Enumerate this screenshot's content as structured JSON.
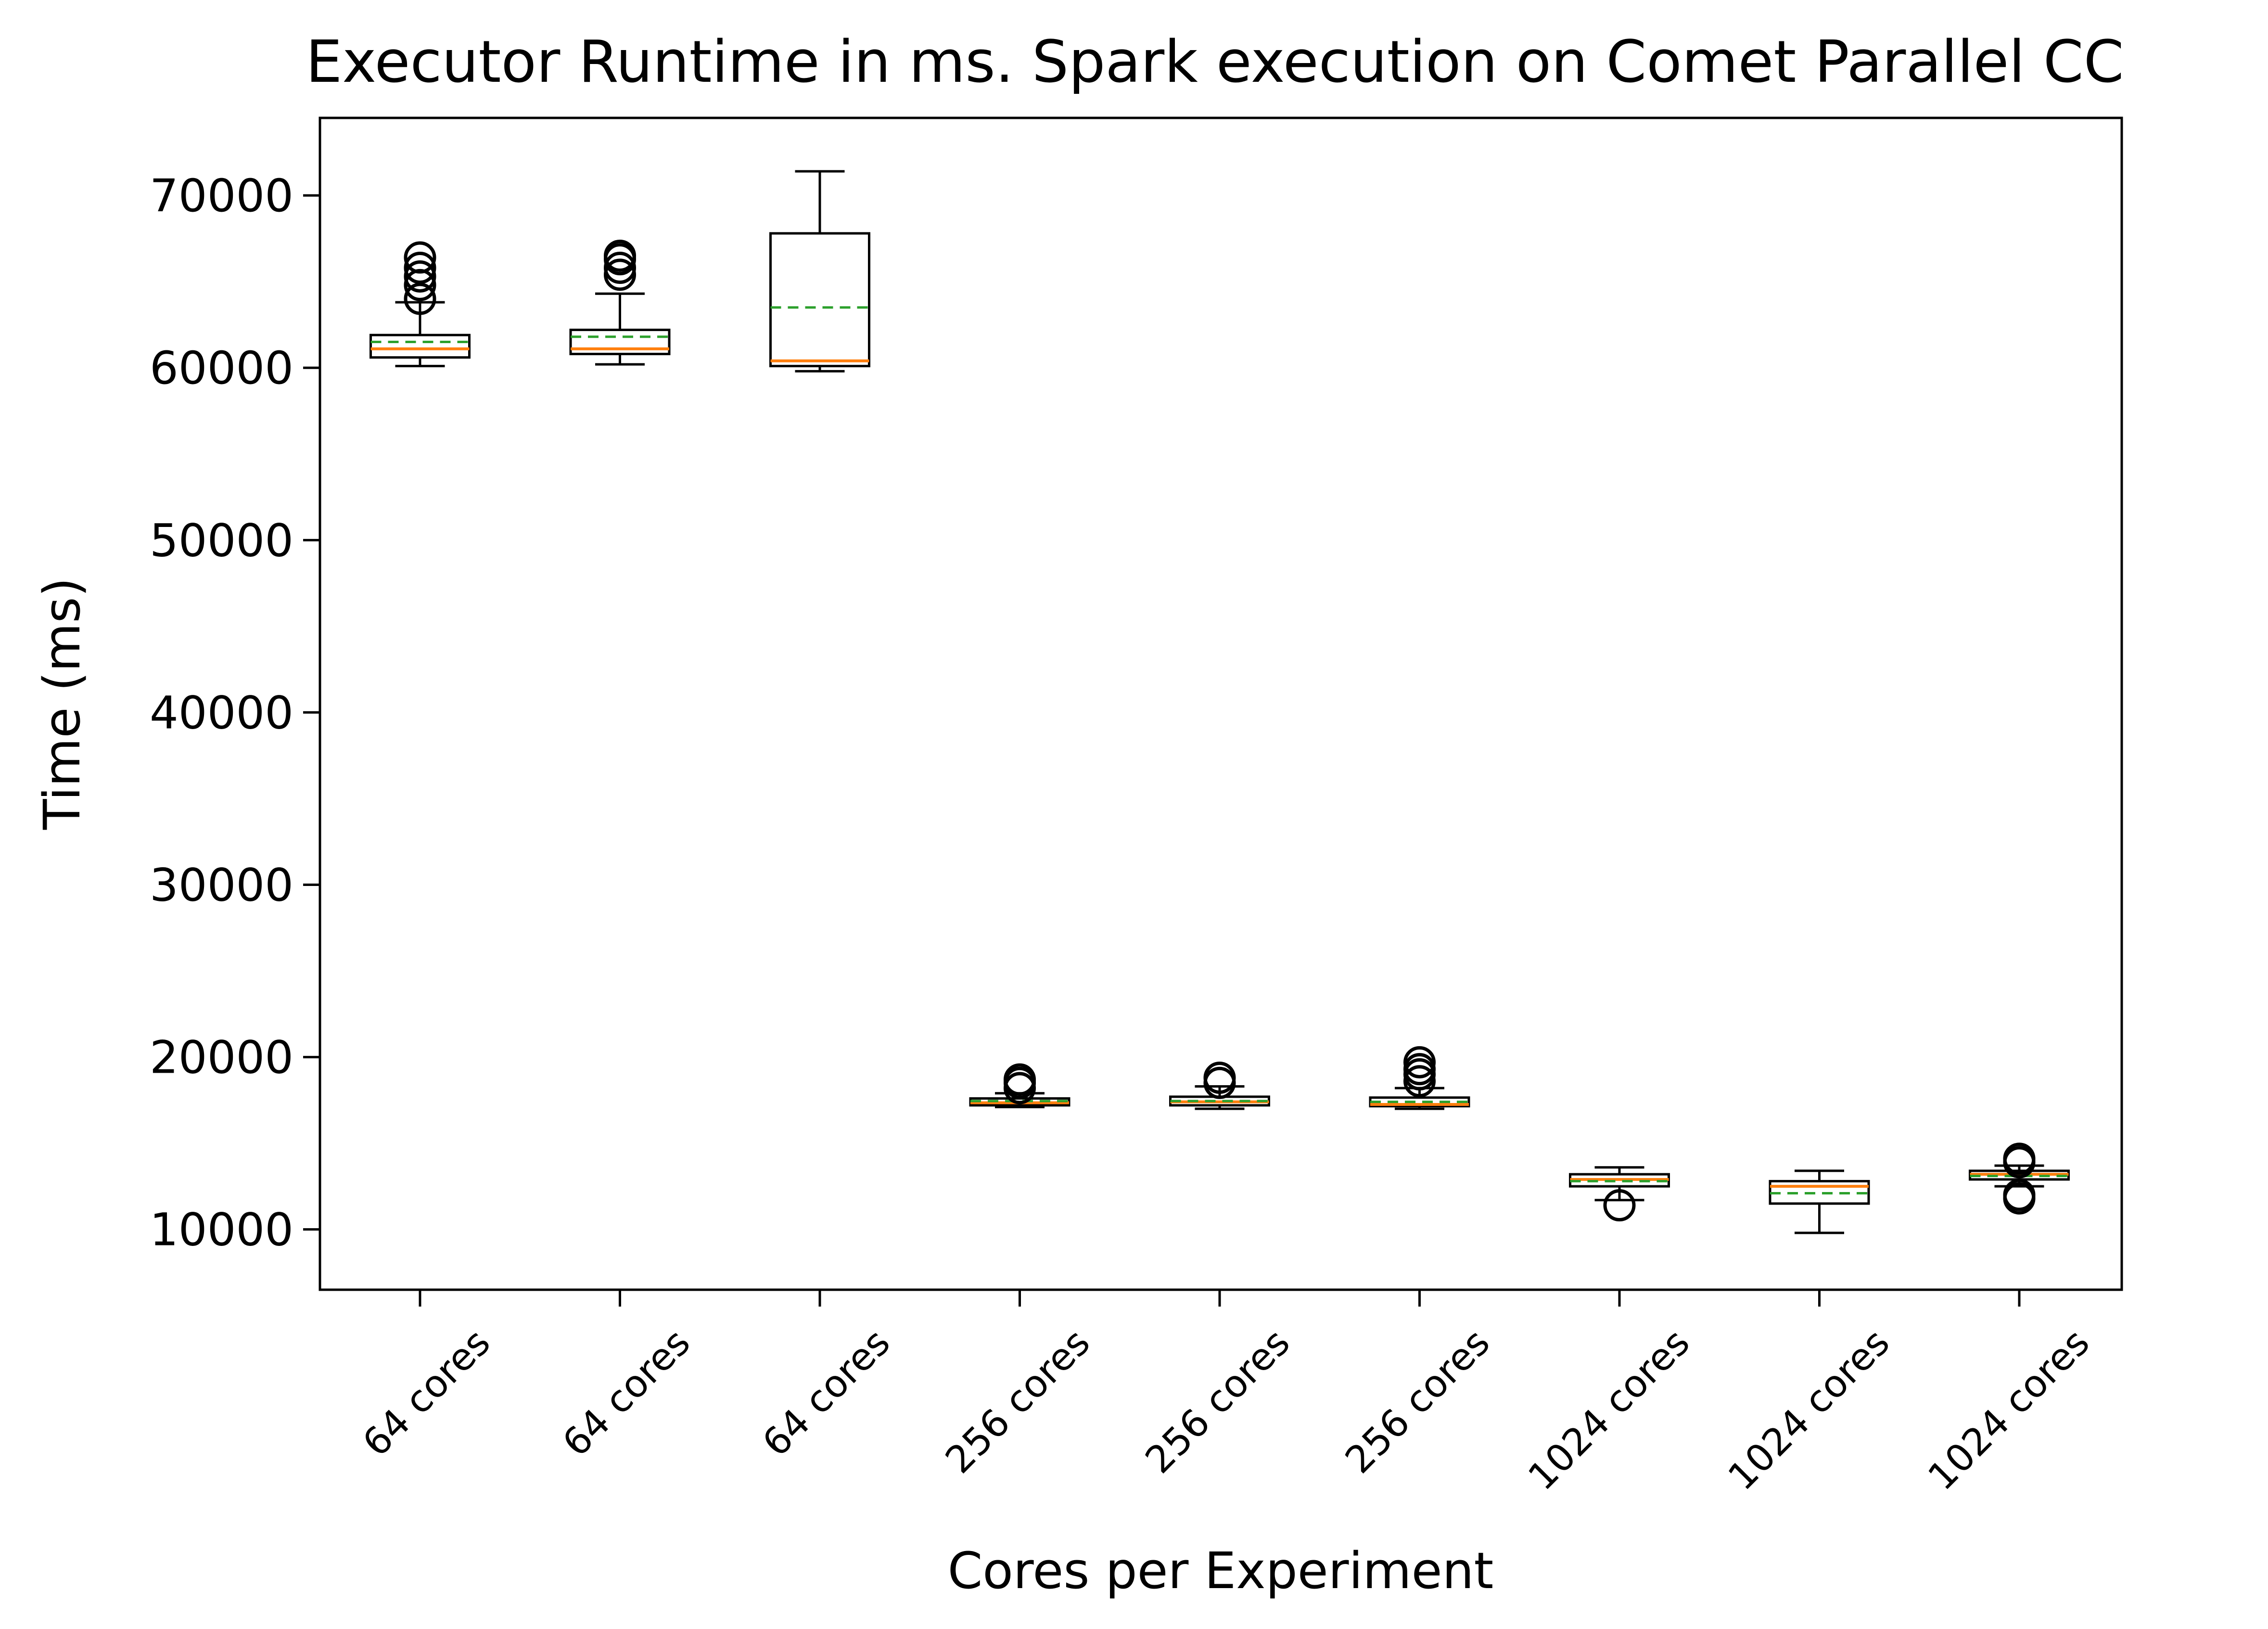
{
  "chart_data": {
    "type": "box",
    "title": "Executor Runtime in ms. Spark execution on Comet Parallel CC",
    "xlabel": "Cores per Experiment",
    "ylabel": "Time (ms)",
    "ylim": [
      6500,
      74500
    ],
    "yticks": [
      10000,
      20000,
      30000,
      40000,
      50000,
      60000,
      70000
    ],
    "grid": false,
    "categories": [
      "64 cores",
      "64 cores",
      "64 cores",
      "256 cores",
      "256 cores",
      "256 cores",
      "1024 cores",
      "1024 cores",
      "1024 cores"
    ],
    "boxes": [
      {
        "whisker_low": 60100,
        "q1": 60600,
        "median": 61100,
        "mean": 61500,
        "q3": 61900,
        "whisker_high": 63800,
        "outliers": [
          64000,
          64800,
          65300,
          65800,
          66400
        ]
      },
      {
        "whisker_low": 60200,
        "q1": 60800,
        "median": 61100,
        "mean": 61800,
        "q3": 62200,
        "whisker_high": 64300,
        "outliers": [
          65400,
          65800,
          66300,
          66500
        ]
      },
      {
        "whisker_low": 59800,
        "q1": 60100,
        "median": 60400,
        "mean": 63500,
        "q3": 67800,
        "whisker_high": 71400,
        "outliers": []
      },
      {
        "whisker_low": 17100,
        "q1": 17200,
        "median": 17350,
        "mean": 17450,
        "q3": 17600,
        "whisker_high": 17900,
        "outliers": [
          18200,
          18500,
          18700
        ]
      },
      {
        "whisker_low": 17000,
        "q1": 17200,
        "median": 17400,
        "mean": 17450,
        "q3": 17700,
        "whisker_high": 18300,
        "outliers": [
          18500,
          18800
        ]
      },
      {
        "whisker_low": 17000,
        "q1": 17150,
        "median": 17250,
        "mean": 17400,
        "q3": 17650,
        "whisker_high": 18200,
        "outliers": [
          18600,
          19000,
          19300,
          19700
        ]
      },
      {
        "whisker_low": 11700,
        "q1": 12500,
        "median": 12900,
        "mean": 12800,
        "q3": 13200,
        "whisker_high": 13600,
        "outliers": [
          11400
        ]
      },
      {
        "whisker_low": 9800,
        "q1": 11500,
        "median": 12500,
        "mean": 12100,
        "q3": 12800,
        "whisker_high": 13400,
        "outliers": []
      },
      {
        "whisker_low": 12500,
        "q1": 12900,
        "median": 13200,
        "mean": 13100,
        "q3": 13400,
        "whisker_high": 13700,
        "outliers": [
          11800,
          12000,
          13900,
          14100
        ]
      }
    ],
    "colors": {
      "box": "#000000",
      "median": "#ff7f0e",
      "mean": "#2ca02c"
    }
  }
}
